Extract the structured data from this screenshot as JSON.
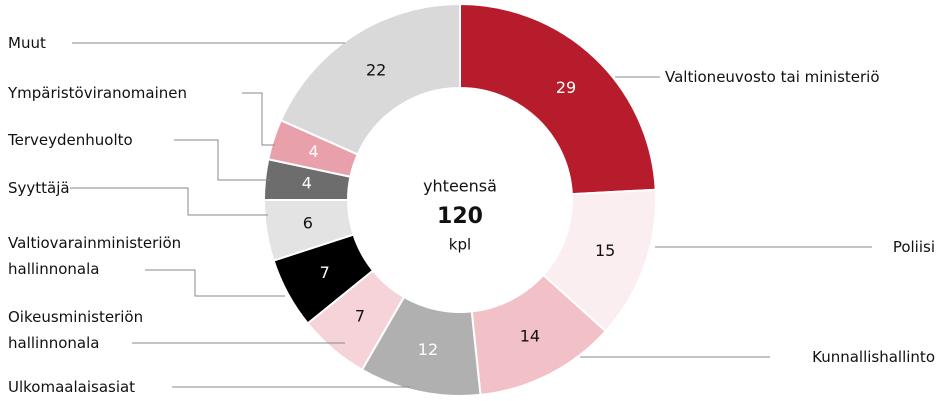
{
  "chart_data": {
    "type": "donut",
    "categories": [
      "Valtioneuvosto tai ministeriö",
      "Poliisi",
      "Kunnallishallinto",
      "Ulkomaalaisasiat",
      "Oikeusministeriön hallinnonala",
      "Valtiovarainministeriön hallinnonala",
      "Syyttäjä",
      "Terveydenhuolto",
      "Ympäristöviranomainen",
      "Muut"
    ],
    "values": [
      29,
      15,
      14,
      12,
      7,
      7,
      6,
      4,
      4,
      22
    ],
    "colors": [
      "#b71c2c",
      "#fbeef1",
      "#f2c0c7",
      "#b0b0b0",
      "#f6d3d8",
      "#000000",
      "#e3e3e3",
      "#6d6d6d",
      "#e8a0ab",
      "#d9d9d9"
    ],
    "center_top": "yhteensä",
    "total": 120,
    "center_bottom": "kpl"
  }
}
